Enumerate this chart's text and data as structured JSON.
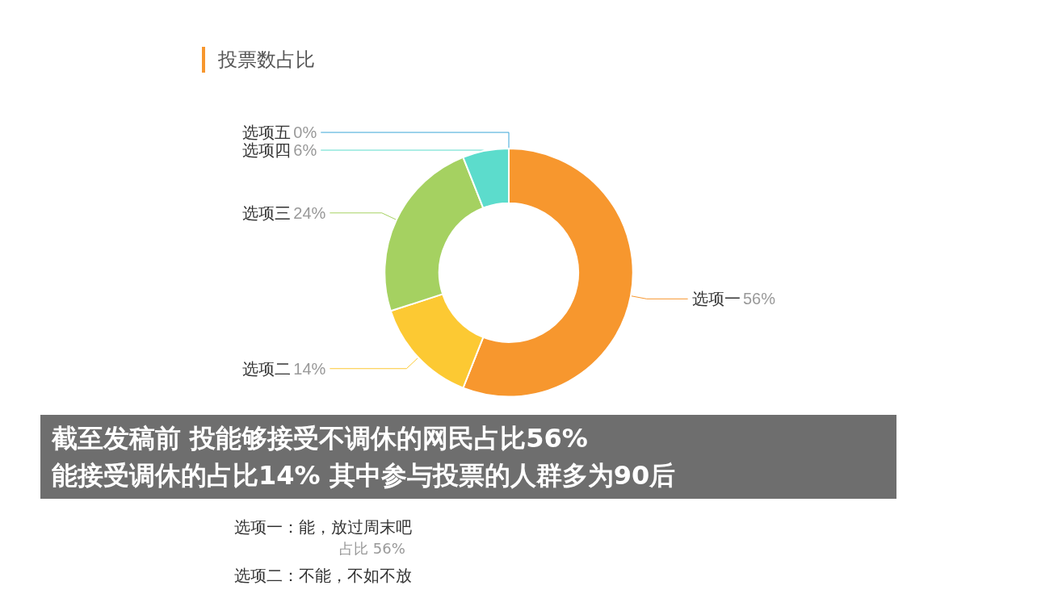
{
  "chart_data": {
    "type": "donut",
    "title": "投票数占比",
    "categories": [
      "选项一",
      "选项二",
      "选项三",
      "选项四",
      "选项五"
    ],
    "values": [
      56,
      14,
      24,
      6,
      0
    ],
    "colors": [
      "#f7972e",
      "#fcc933",
      "#a5d161",
      "#5cdccc",
      "#3aa6d8"
    ],
    "value_labels": [
      "56%",
      "14%",
      "24%",
      "6%",
      "0%"
    ],
    "annotations": [
      "截至发稿前 投能够接受不调休的网民占比56%",
      "能接受调休的占比14% 其中参与投票的人群多为90后",
      "选项一：能，放过周末吧",
      "占比 56%",
      "选项二：不能，不如不放"
    ]
  }
}
